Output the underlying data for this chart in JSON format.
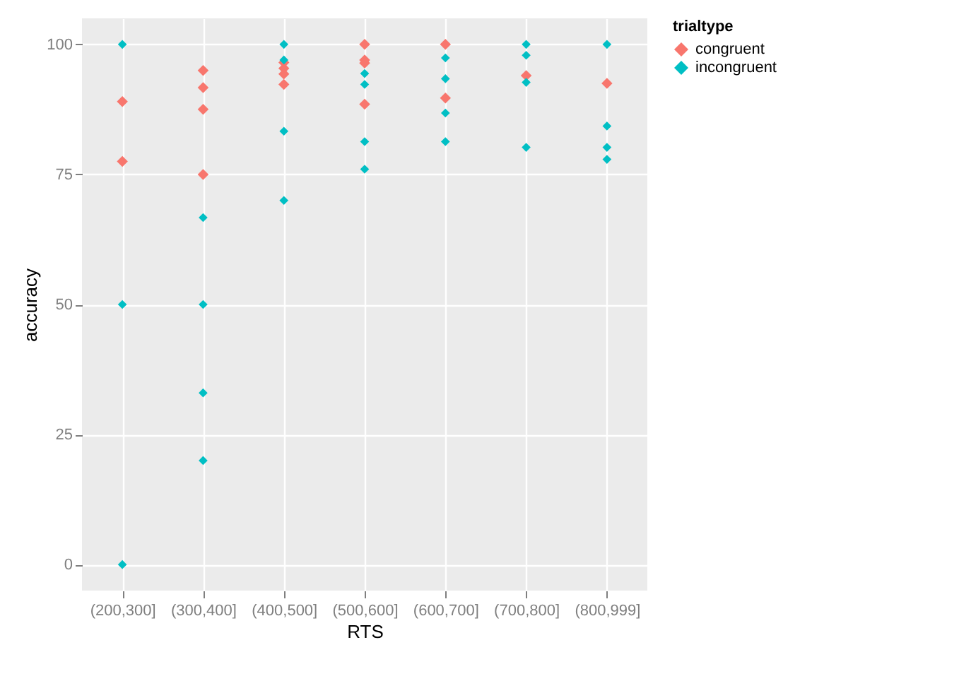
{
  "chart_data": {
    "type": "scatter",
    "xlabel": "RTS",
    "ylabel": "accuracy",
    "legend_title": "trialtype",
    "categories": [
      "(200,300]",
      "(300,400]",
      "(400,500]",
      "(500,600]",
      "(600,700]",
      "(700,800]",
      "(800,999]"
    ],
    "ylim": [
      -5,
      105
    ],
    "yticks": [
      0,
      25,
      50,
      75,
      100
    ],
    "grid": true,
    "legend": "right",
    "marker": "diamond",
    "series": [
      {
        "name": "congruent",
        "color": "#f8766d",
        "x": [
          "(200,300]",
          "(200,300]",
          "(300,400]",
          "(300,400]",
          "(300,400]",
          "(300,400]",
          "(400,500]",
          "(400,500]",
          "(400,500]",
          "(400,500]",
          "(500,600]",
          "(500,600]",
          "(500,600]",
          "(500,600]",
          "(600,700]",
          "(600,700]",
          "(700,800]",
          "(800,999]"
        ],
        "values": [
          89,
          77.5,
          95,
          91.7,
          87.5,
          75,
          96.5,
          95.4,
          94.3,
          92.3,
          100,
          97,
          96.4,
          88.5,
          100,
          89.7,
          94,
          92.5
        ]
      },
      {
        "name": "incongruent",
        "color": "#00bfc4",
        "x": [
          "(200,300]",
          "(200,300]",
          "(200,300]",
          "(300,400]",
          "(300,400]",
          "(300,400]",
          "(300,400]",
          "(400,500]",
          "(400,500]",
          "(400,500]",
          "(400,500]",
          "(500,600]",
          "(500,600]",
          "(500,600]",
          "(500,600]",
          "(600,700]",
          "(600,700]",
          "(600,700]",
          "(600,700]",
          "(700,800]",
          "(700,800]",
          "(700,800]",
          "(700,800]",
          "(800,999]",
          "(800,999]",
          "(800,999]",
          "(800,999]"
        ],
        "values": [
          100,
          50,
          0,
          66.7,
          50,
          33,
          20,
          100,
          97,
          83.3,
          70,
          94.4,
          92.3,
          81.3,
          76,
          97.4,
          93.4,
          86.8,
          81.3,
          100,
          97.9,
          92.7,
          80.2,
          100,
          84.3,
          80.2,
          77.9
        ]
      }
    ]
  }
}
